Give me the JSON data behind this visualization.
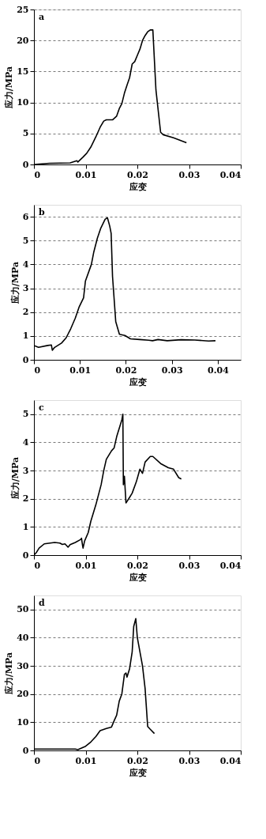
{
  "chart_data": [
    {
      "type": "line",
      "title": "a",
      "xlabel": "应变",
      "ylabel": "应力/MPa",
      "xlim": [
        0,
        0.04
      ],
      "xticks": [
        0,
        0.01,
        0.02,
        0.03,
        0.04
      ],
      "ylim": [
        0,
        25
      ],
      "yticks": [
        0,
        5,
        10,
        15,
        20,
        25
      ],
      "grid": "y",
      "line_style": "solid",
      "x": [
        0,
        0.003,
        0.007,
        0.0083,
        0.0085,
        0.0095,
        0.0102,
        0.011,
        0.012,
        0.0128,
        0.0135,
        0.014,
        0.0152,
        0.016,
        0.0165,
        0.017,
        0.0175,
        0.018,
        0.0185,
        0.019,
        0.0195,
        0.02,
        0.0205,
        0.021,
        0.0215,
        0.022,
        0.0225,
        0.023,
        0.0236,
        0.0245,
        0.025,
        0.027,
        0.028,
        0.0295
      ],
      "series": [
        {
          "color": "#000000",
          "values": [
            0,
            0.2,
            0.25,
            0.6,
            0.4,
            1.2,
            1.8,
            2.8,
            4.5,
            6,
            7.0,
            7.2,
            7.2,
            7.8,
            9,
            9.8,
            11.5,
            12.8,
            14,
            16.2,
            16.6,
            17.6,
            18.6,
            20,
            20.8,
            21.4,
            21.7,
            21.7,
            12,
            5.2,
            4.8,
            4.3,
            4.0,
            3.5
          ]
        }
      ]
    },
    {
      "type": "line",
      "title": "b",
      "xlabel": "应变",
      "ylabel": "应力/MPa",
      "xlim": [
        0,
        0.045
      ],
      "xticks": [
        0,
        0.01,
        0.02,
        0.03,
        0.04
      ],
      "ylim": [
        0,
        6.5
      ],
      "yticks": [
        0,
        1,
        2,
        3,
        4,
        5,
        6
      ],
      "grid": "y",
      "line_style": "solid",
      "x": [
        0,
        0.001,
        0.003,
        0.0038,
        0.004,
        0.0045,
        0.006,
        0.007,
        0.008,
        0.009,
        0.0098,
        0.0108,
        0.0112,
        0.0125,
        0.013,
        0.0138,
        0.0145,
        0.0155,
        0.016,
        0.0165,
        0.0168,
        0.0171,
        0.0178,
        0.0186,
        0.0198,
        0.021,
        0.023,
        0.025,
        0.0258,
        0.027,
        0.029,
        0.032,
        0.035,
        0.038,
        0.0395
      ],
      "series": [
        {
          "color": "#000000",
          "values": [
            0.6,
            0.52,
            0.6,
            0.62,
            0.4,
            0.52,
            0.7,
            0.92,
            1.3,
            1.75,
            2.2,
            2.6,
            3.3,
            4.0,
            4.5,
            5.1,
            5.5,
            5.9,
            5.95,
            5.6,
            5.3,
            3.5,
            1.6,
            1.07,
            1.02,
            0.88,
            0.85,
            0.82,
            0.8,
            0.85,
            0.8,
            0.84,
            0.83,
            0.79,
            0.8
          ]
        }
      ]
    },
    {
      "type": "line",
      "title": "c",
      "xlabel": "应变",
      "ylabel": "应力/MPa",
      "xlim": [
        0,
        0.04
      ],
      "xticks": [
        0,
        0.01,
        0.02,
        0.03,
        0.04
      ],
      "ylim": [
        0,
        5.5
      ],
      "yticks": [
        0,
        1,
        2,
        3,
        4,
        5
      ],
      "grid": "y",
      "line_style": "solid",
      "x": [
        0,
        0.0005,
        0.001,
        0.002,
        0.004,
        0.005,
        0.0055,
        0.006,
        0.0066,
        0.007,
        0.008,
        0.009,
        0.0092,
        0.0094,
        0.0095,
        0.0098,
        0.0105,
        0.011,
        0.012,
        0.013,
        0.0135,
        0.014,
        0.015,
        0.0155,
        0.016,
        0.017,
        0.0172,
        0.0173,
        0.0175,
        0.0178,
        0.0185,
        0.019,
        0.0198,
        0.0205,
        0.021,
        0.0215,
        0.0225,
        0.023,
        0.0245,
        0.026,
        0.027,
        0.028,
        0.0285
      ],
      "series": [
        {
          "color": "#000000",
          "values": [
            0,
            0.1,
            0.25,
            0.4,
            0.45,
            0.43,
            0.38,
            0.4,
            0.28,
            0.37,
            0.45,
            0.55,
            0.6,
            0.35,
            0.25,
            0.5,
            0.8,
            1.2,
            1.8,
            2.5,
            3.0,
            3.4,
            3.7,
            3.8,
            4.2,
            4.8,
            5.0,
            2.5,
            2.8,
            1.85,
            2.05,
            2.2,
            2.6,
            3.05,
            2.9,
            3.3,
            3.5,
            3.5,
            3.25,
            3.1,
            3.05,
            2.75,
            2.7
          ]
        }
      ]
    },
    {
      "type": "line",
      "title": "d",
      "xlabel": "应变",
      "ylabel": "应力/MPa",
      "xlim": [
        0,
        0.04
      ],
      "xticks": [
        0,
        0.01,
        0.02,
        0.03,
        0.04
      ],
      "ylim": [
        0,
        55
      ],
      "yticks": [
        0,
        10,
        20,
        30,
        40,
        50
      ],
      "grid": "y",
      "line_style": "solid",
      "x": [
        0,
        0.008,
        0.0085,
        0.01,
        0.011,
        0.012,
        0.0128,
        0.014,
        0.015,
        0.0155,
        0.016,
        0.0165,
        0.017,
        0.0175,
        0.0178,
        0.018,
        0.0185,
        0.019,
        0.0193,
        0.0197,
        0.02,
        0.021,
        0.0215,
        0.022,
        0.0225,
        0.0233
      ],
      "series": [
        {
          "color": "#000000",
          "values": [
            0.5,
            0.5,
            0.3,
            1.5,
            3,
            5,
            7,
            7.8,
            8.3,
            10.5,
            12.5,
            17.5,
            20,
            27,
            27.5,
            26,
            29,
            35,
            44,
            46.8,
            40,
            30,
            22,
            8.5,
            7.5,
            6
          ]
        }
      ]
    }
  ]
}
